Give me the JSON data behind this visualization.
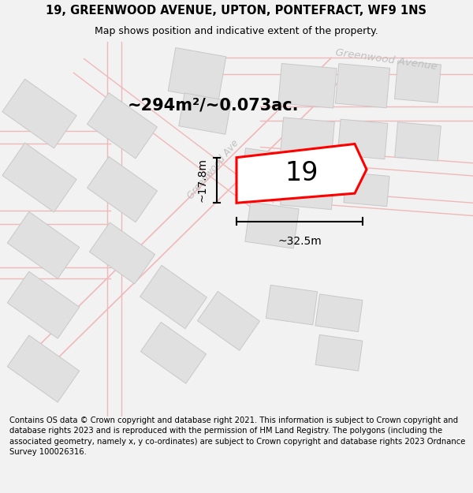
{
  "title_line1": "19, GREENWOOD AVENUE, UPTON, PONTEFRACT, WF9 1NS",
  "title_line2": "Map shows position and indicative extent of the property.",
  "footer_text": "Contains OS data © Crown copyright and database right 2021. This information is subject to Crown copyright and database rights 2023 and is reproduced with the permission of HM Land Registry. The polygons (including the associated geometry, namely x, y co-ordinates) are subject to Crown copyright and database rights 2023 Ordnance Survey 100026316.",
  "area_label": "~294m²/~0.073ac.",
  "number_label": "19",
  "width_label": "~32.5m",
  "height_label": "~17.8m",
  "road_label_diagonal": "Greenwood Ave",
  "road_label_top": "Greenwood Avenue",
  "bg_color": "#f2f2f2",
  "map_bg": "#ffffff",
  "building_fill": "#e0e0e0",
  "building_edge": "#c8c8c8",
  "road_color": "#f0b8b8",
  "highlight_color": "#ff0000",
  "highlight_fill": "#ffffff",
  "street_label_color": "#c0c0c0",
  "title_fontsize": 10.5,
  "subtitle_fontsize": 9,
  "footer_fontsize": 7.2,
  "area_fontsize": 15,
  "number_fontsize": 24,
  "dim_fontsize": 10
}
